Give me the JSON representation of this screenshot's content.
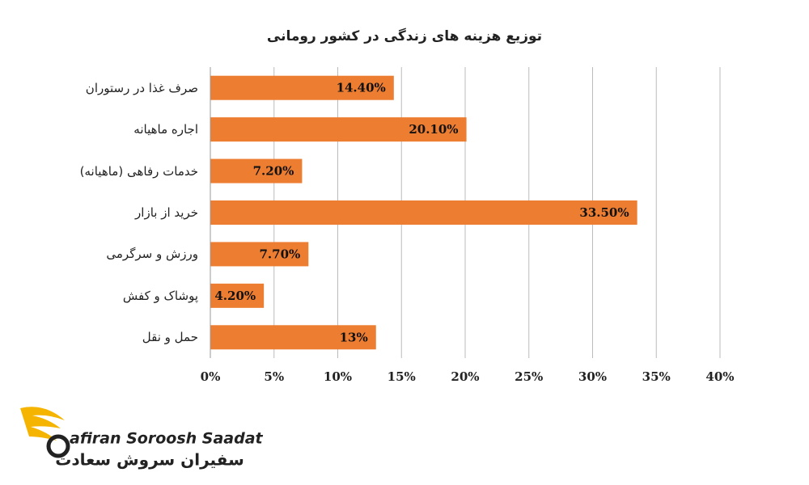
{
  "chart_data": {
    "type": "barh",
    "title": "توزیع هزینه های زندگی در کشور رومانی",
    "categories": [
      "صرف غذا در رستوران",
      "اجاره ماهیانه",
      "خدمات رفاهی (ماهیانه)",
      "خرید از بازار",
      "ورزش و سرگرمی",
      "پوشاک و کفش",
      "حمل و نقل"
    ],
    "values": [
      14.4,
      20.1,
      7.2,
      33.5,
      7.7,
      4.2,
      13
    ],
    "value_labels": [
      "14.40%",
      "20.10%",
      "7.20%",
      "33.50%",
      "7.70%",
      "4.20%",
      "13%"
    ],
    "color": "#ed7d31",
    "xlim": [
      0,
      40
    ],
    "xticks": [
      {
        "value": 0,
        "label": "0%"
      },
      {
        "value": 5,
        "label": "5%"
      },
      {
        "value": 10,
        "label": "10%"
      },
      {
        "value": 15,
        "label": "15%"
      },
      {
        "value": 20,
        "label": "20%"
      },
      {
        "value": 25,
        "label": "25%"
      },
      {
        "value": 30,
        "label": "30%"
      },
      {
        "value": 35,
        "label": "35%"
      },
      {
        "value": 40,
        "label": "40%"
      }
    ],
    "grid": true
  },
  "logo": {
    "name": "afiran Soroosh Saadat",
    "name_fa": "سفیران سروش سعادت"
  }
}
